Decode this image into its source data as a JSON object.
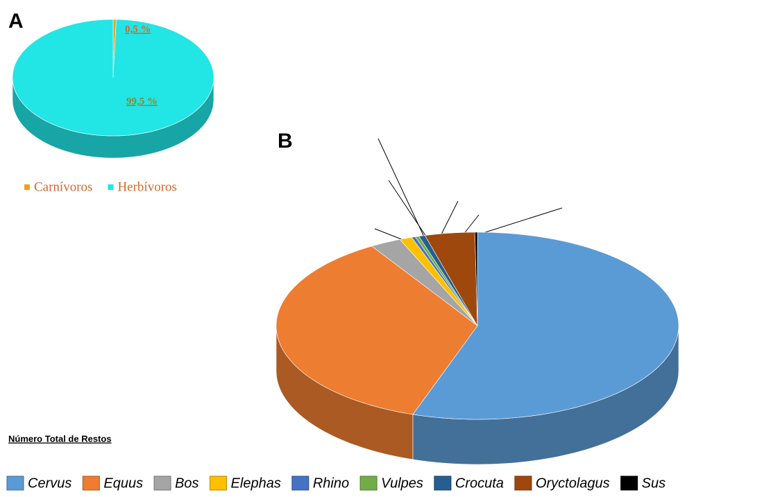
{
  "chart_data": [
    {
      "type": "pie3d",
      "panel": "A",
      "categories": [
        "Carnívoros",
        "Herbívoros"
      ],
      "values": [
        0.5,
        99.5
      ],
      "value_labels": [
        "0,5 %",
        "99,5 %"
      ],
      "colors": [
        "#f0a020",
        "#22e5e5"
      ]
    },
    {
      "type": "pie3d",
      "panel": "B",
      "subtitle": "Número Total de Restos",
      "categories": [
        "Cervus",
        "Equus",
        "Bos",
        "Elephas",
        "Rhino",
        "Vulpes",
        "Crocuta",
        "Oryctolagus",
        "Sus"
      ],
      "values": [
        55.2,
        36,
        2.5,
        1,
        0.3,
        0.3,
        0.5,
        4,
        0.2
      ],
      "colors": [
        "#5b9bd5",
        "#ed7d31",
        "#a5a5a5",
        "#ffc000",
        "#4472c4",
        "#70ad47",
        "#255e91",
        "#9e480e",
        "#000000"
      ]
    }
  ]
}
